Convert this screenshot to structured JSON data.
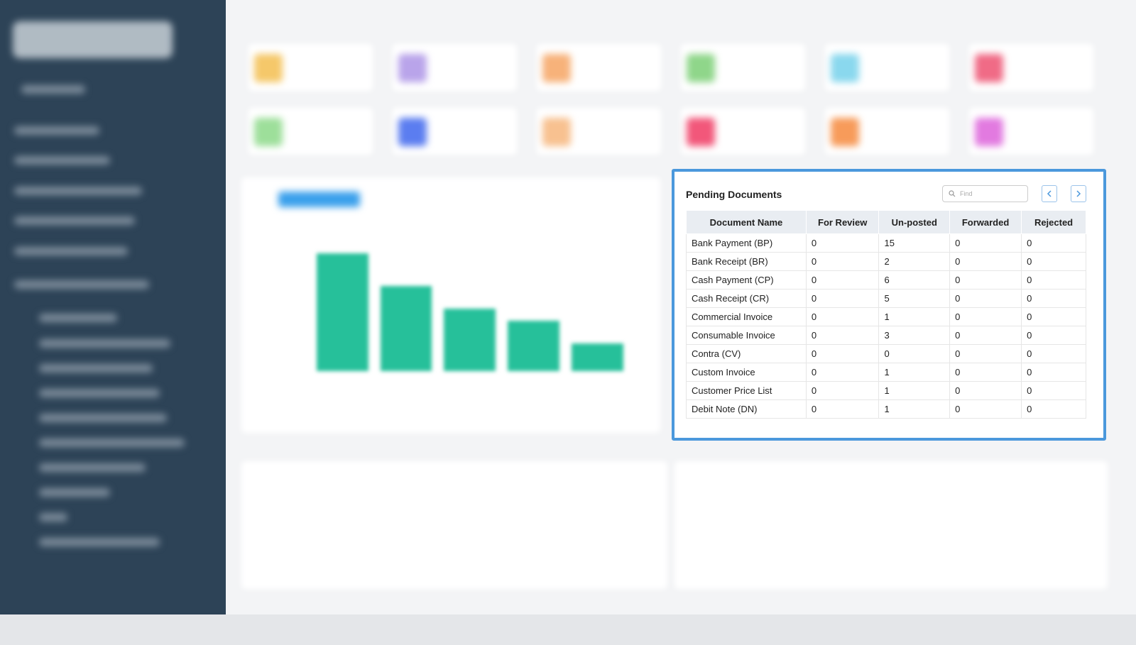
{
  "panel": {
    "title": "Pending Documents",
    "search_placeholder": "Find",
    "table": {
      "headers": [
        "Document Name",
        "For Review",
        "Un-posted",
        "Forwarded",
        "Rejected"
      ],
      "rows": [
        [
          "Bank Payment (BP)",
          0,
          15,
          0,
          0
        ],
        [
          "Bank Receipt (BR)",
          0,
          2,
          0,
          0
        ],
        [
          "Cash Payment (CP)",
          0,
          6,
          0,
          0
        ],
        [
          "Cash Receipt (CR)",
          0,
          5,
          0,
          0
        ],
        [
          "Commercial Invoice",
          0,
          1,
          0,
          0
        ],
        [
          "Consumable Invoice",
          0,
          3,
          0,
          0
        ],
        [
          "Contra (CV)",
          0,
          0,
          0,
          0
        ],
        [
          "Custom Invoice",
          0,
          1,
          0,
          0
        ],
        [
          "Customer Price List",
          0,
          1,
          0,
          0
        ],
        [
          "Debit Note (DN)",
          0,
          1,
          0,
          0
        ]
      ]
    }
  }
}
